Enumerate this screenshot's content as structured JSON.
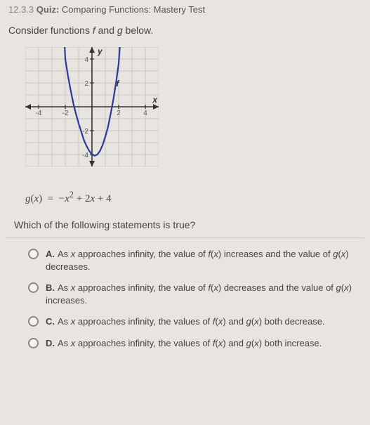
{
  "header": {
    "number": "12.3.3",
    "label": "Quiz:",
    "title": "Comparing Functions: Mastery Test"
  },
  "prompt_prefix": "Consider functions ",
  "prompt_f": "f",
  "prompt_mid": " and ",
  "prompt_g": "g",
  "prompt_suffix": " below.",
  "graph": {
    "type": "line",
    "width": 190,
    "height": 170,
    "xlim": [
      -5,
      5
    ],
    "ylim": [
      -5,
      5
    ],
    "xtick_labels": [
      "-4",
      "-2",
      "2",
      "4"
    ],
    "ytick_labels": [
      "-4",
      "-2",
      "2",
      "4"
    ],
    "grid_color": "#bfbcb6",
    "axis_color": "#333333",
    "background_color": "#e8e5e0",
    "curve_color": "#2a3a9a",
    "curve_width": 2.2,
    "axis_label_x": "x",
    "axis_label_y": "y",
    "function_label": "f",
    "function_label_color": "#333333",
    "points": [
      [
        -2.05,
        5.2
      ],
      [
        -2.0,
        4.0
      ],
      [
        -1.8,
        2.6
      ],
      [
        -1.6,
        1.4
      ],
      [
        -1.4,
        0.3
      ],
      [
        -1.2,
        -0.6
      ],
      [
        -1.0,
        -1.4
      ],
      [
        -0.8,
        -2.1
      ],
      [
        -0.6,
        -2.8
      ],
      [
        -0.4,
        -3.3
      ],
      [
        -0.2,
        -3.7
      ],
      [
        0.0,
        -4.0
      ],
      [
        0.2,
        -4.1
      ],
      [
        0.4,
        -4.0
      ],
      [
        0.6,
        -3.7
      ],
      [
        0.8,
        -3.2
      ],
      [
        1.0,
        -2.5
      ],
      [
        1.2,
        -1.7
      ],
      [
        1.4,
        -0.6
      ],
      [
        1.6,
        0.6
      ],
      [
        1.8,
        2.0
      ],
      [
        2.0,
        3.6
      ],
      [
        2.1,
        5.2
      ]
    ]
  },
  "equation": "g(x) = −x² + 2x + 4",
  "question": "Which of the following statements is true?",
  "choices": [
    {
      "letter": "A.",
      "html": "As <i>x</i> approaches infinity, the value of <i>f</i>(<i>x</i>) increases and the value of <i>g</i>(<i>x</i>) decreases."
    },
    {
      "letter": "B.",
      "html": "As <i>x</i> approaches infinity, the value of <i>f</i>(<i>x</i>) decreases and the value of <i>g</i>(<i>x</i>) increases."
    },
    {
      "letter": "C.",
      "html": "As <i>x</i> approaches infinity, the values of <i>f</i>(<i>x</i>) and <i>g</i>(<i>x</i>) both decrease."
    },
    {
      "letter": "D.",
      "html": "As <i>x</i> approaches infinity, the values of <i>f</i>(<i>x</i>) and <i>g</i>(<i>x</i>) both increase."
    }
  ]
}
